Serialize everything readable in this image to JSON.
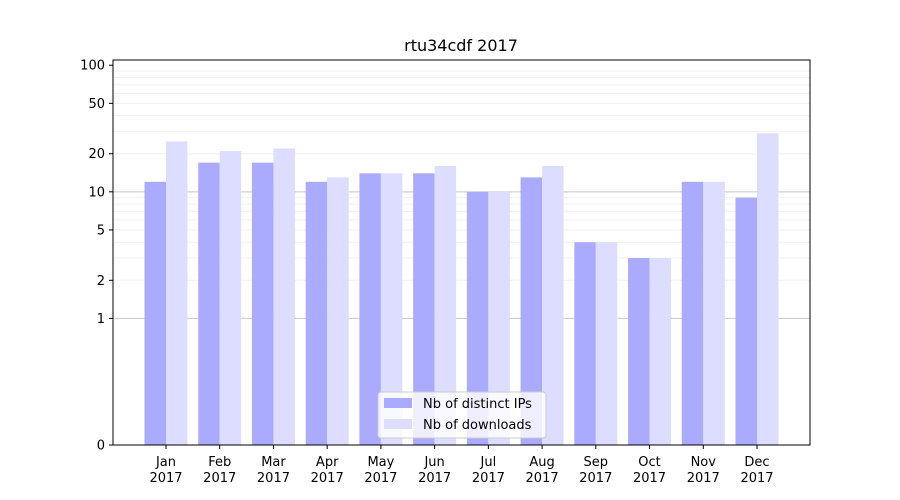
{
  "chart_data": {
    "type": "bar",
    "title": "rtu34cdf 2017",
    "xlabel": "",
    "ylabel": "",
    "y_scale": "symlog",
    "ylim": [
      0,
      110
    ],
    "y_ticks": [
      0,
      1,
      2,
      5,
      10,
      20,
      50,
      100
    ],
    "y_tick_labels": [
      "0",
      "1",
      "2",
      "5",
      "10",
      "20",
      "50",
      "100"
    ],
    "categories": [
      "Jan\n2017",
      "Feb\n2017",
      "Mar\n2017",
      "Apr\n2017",
      "May\n2017",
      "Jun\n2017",
      "Jul\n2017",
      "Aug\n2017",
      "Sep\n2017",
      "Oct\n2017",
      "Nov\n2017",
      "Dec\n2017"
    ],
    "series": [
      {
        "name": "Nb of distinct IPs",
        "color": "#aaaaff",
        "values": [
          12,
          17,
          17,
          12,
          14,
          14,
          10,
          13,
          4,
          3,
          12,
          9
        ]
      },
      {
        "name": "Nb of downloads",
        "color": "#ddddff",
        "values": [
          25,
          21,
          22,
          13,
          14,
          16,
          10,
          16,
          4,
          3,
          12,
          29
        ]
      }
    ],
    "legend_position": "bottom-center",
    "grid": "horizontal"
  }
}
